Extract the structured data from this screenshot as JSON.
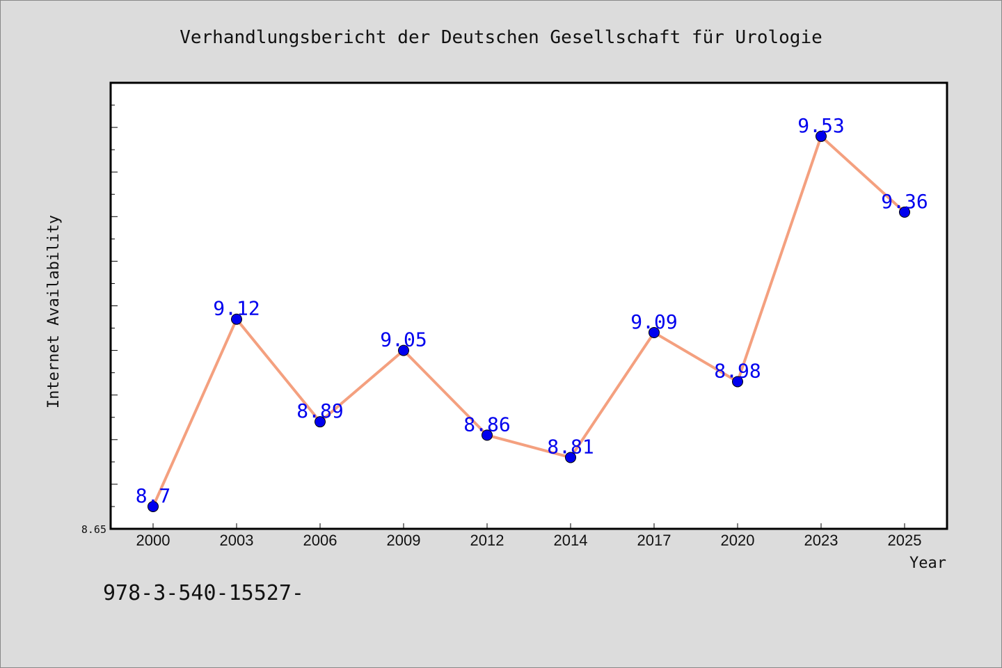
{
  "chart_data": {
    "type": "line",
    "title": "Verhandlungsbericht der Deutschen Gesellschaft für Urologie",
    "xlabel": "Year",
    "ylabel": "Internet Availability",
    "categories": [
      "2000",
      "2003",
      "2006",
      "2009",
      "2012",
      "2014",
      "2017",
      "2020",
      "2023",
      "2025"
    ],
    "series": [
      {
        "values": [
          8.7,
          9.12,
          8.89,
          9.05,
          8.86,
          8.81,
          9.09,
          8.98,
          9.53,
          9.36
        ],
        "labels": [
          "8.7",
          "9.12",
          "8.89",
          "9.05",
          "8.86",
          "8.81",
          "9.09",
          "8.98",
          "9.53",
          "9.36"
        ]
      }
    ],
    "ylim": [
      8.65,
      9.65
    ],
    "y_tick_labels": [
      "8.65"
    ],
    "grid": false,
    "line_color": "#f4a07f",
    "marker_color": "#0000ee",
    "label_color": "#0000ee"
  },
  "footer": {
    "isbn": "978-3-540-15527-"
  },
  "colors": {
    "background": "#dcdcdc",
    "plot_background": "#ffffff"
  }
}
